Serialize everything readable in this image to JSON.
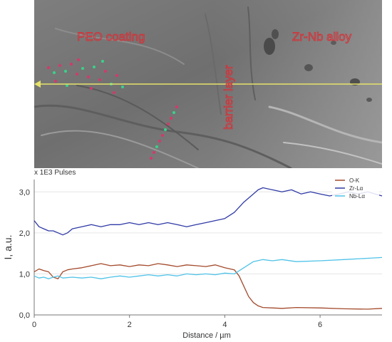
{
  "micrograph": {
    "labels": {
      "coating": "PEO coating",
      "alloy": "Zr-Nb alloy",
      "barrier": "barrier layer"
    },
    "scan_line_color": "#e6e36a"
  },
  "chart_data": {
    "type": "line",
    "multiplier_label": "x 1E3 Pulses",
    "xlabel": "Distance / µm",
    "ylabel": "I, a.u.",
    "xlim": [
      0,
      7.3
    ],
    "ylim": [
      0,
      3.3
    ],
    "xticks": [
      0,
      2,
      4,
      6
    ],
    "yticks": [
      0.0,
      1.0,
      2.0,
      3.0
    ],
    "ytick_labels": [
      "0,0",
      "1,0",
      "2,0",
      "3,0"
    ],
    "grid": "horizontal",
    "legend_position": "top-right",
    "series": [
      {
        "name": "O-K",
        "color": "#a34a2c",
        "x": [
          0,
          0.1,
          0.2,
          0.3,
          0.4,
          0.5,
          0.6,
          0.7,
          0.8,
          1.0,
          1.2,
          1.4,
          1.6,
          1.8,
          2.0,
          2.2,
          2.4,
          2.6,
          2.8,
          3.0,
          3.2,
          3.4,
          3.6,
          3.8,
          4.0,
          4.2,
          4.3,
          4.4,
          4.5,
          4.6,
          4.7,
          4.8,
          5.0,
          5.2,
          5.5,
          6.0,
          6.5,
          7.0,
          7.3
        ],
        "y": [
          1.05,
          1.12,
          1.08,
          1.05,
          0.92,
          0.88,
          1.05,
          1.1,
          1.12,
          1.15,
          1.2,
          1.25,
          1.2,
          1.22,
          1.18,
          1.22,
          1.2,
          1.25,
          1.22,
          1.18,
          1.22,
          1.2,
          1.18,
          1.22,
          1.15,
          1.1,
          0.95,
          0.7,
          0.45,
          0.3,
          0.22,
          0.18,
          0.17,
          0.16,
          0.18,
          0.17,
          0.15,
          0.14,
          0.16
        ]
      },
      {
        "name": "Zr-Lα",
        "color": "#2f3aa6",
        "x": [
          0,
          0.1,
          0.2,
          0.3,
          0.4,
          0.5,
          0.6,
          0.7,
          0.8,
          1.0,
          1.2,
          1.4,
          1.6,
          1.8,
          2.0,
          2.2,
          2.4,
          2.6,
          2.8,
          3.0,
          3.2,
          3.4,
          3.6,
          3.8,
          4.0,
          4.2,
          4.4,
          4.6,
          4.7,
          4.8,
          5.0,
          5.2,
          5.4,
          5.6,
          5.8,
          6.0,
          6.2,
          6.4,
          6.6,
          6.8,
          7.0,
          7.3
        ],
        "y": [
          2.3,
          2.15,
          2.1,
          2.05,
          2.05,
          2.0,
          1.95,
          2.0,
          2.1,
          2.15,
          2.2,
          2.15,
          2.2,
          2.2,
          2.25,
          2.2,
          2.25,
          2.2,
          2.25,
          2.2,
          2.15,
          2.2,
          2.25,
          2.3,
          2.35,
          2.5,
          2.75,
          2.95,
          3.05,
          3.1,
          3.05,
          3.0,
          3.05,
          2.95,
          3.0,
          2.95,
          2.9,
          2.95,
          3.0,
          2.95,
          3.0,
          2.9
        ]
      },
      {
        "name": "Nb-Lα",
        "color": "#4fc3e8",
        "x": [
          0,
          0.1,
          0.2,
          0.3,
          0.4,
          0.5,
          0.6,
          0.8,
          1.0,
          1.2,
          1.4,
          1.6,
          1.8,
          2.0,
          2.2,
          2.4,
          2.6,
          2.8,
          3.0,
          3.2,
          3.4,
          3.6,
          3.8,
          4.0,
          4.2,
          4.4,
          4.6,
          4.8,
          5.0,
          5.2,
          5.5,
          6.0,
          6.5,
          7.0,
          7.3
        ],
        "y": [
          0.95,
          0.9,
          0.92,
          0.88,
          0.92,
          0.95,
          0.9,
          0.92,
          0.9,
          0.92,
          0.88,
          0.92,
          0.95,
          0.92,
          0.95,
          0.98,
          0.95,
          0.98,
          0.95,
          1.0,
          0.98,
          1.0,
          0.98,
          1.02,
          1.0,
          1.15,
          1.3,
          1.35,
          1.32,
          1.35,
          1.3,
          1.32,
          1.35,
          1.38,
          1.4
        ]
      }
    ]
  }
}
